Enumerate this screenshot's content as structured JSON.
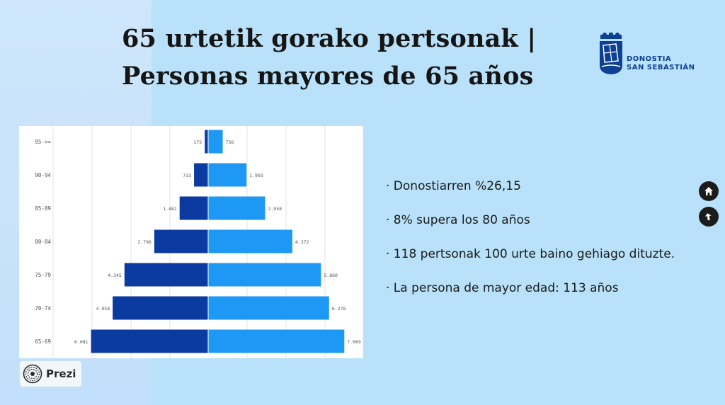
{
  "title": {
    "line1": "65 urtetik gorako pertsonak |",
    "line2": "Personas mayores de 65 años"
  },
  "logo": {
    "line1": "DONOSTIA",
    "line2": "SAN SEBASTIÁN",
    "icon": "city-shield-icon"
  },
  "bullets": [
    "· Donostiarren %26,15",
    "· 8% supera los 80 años",
    "· 118 pertsonak 100 urte baino gehiago dituzte.",
    "· La persona de mayor edad: 113 años"
  ],
  "nav": {
    "home_icon": "home-icon",
    "back_icon": "back-arrow-icon"
  },
  "prezi": {
    "label": "Prezi",
    "icon": "prezi-logo-icon"
  },
  "colors": {
    "background": "#b9e2fa",
    "left_bar": "#0b3aa0",
    "right_bar": "#1e98f5",
    "logo_blue": "#0d3f92"
  },
  "chart_data": {
    "type": "bar",
    "orientation": "horizontal-population-pyramid",
    "categories": [
      "95->=",
      "90-94",
      "85-89",
      "80-84",
      "75-79",
      "70-74",
      "65-69"
    ],
    "series": [
      {
        "values": [
          175,
          733,
          1482,
          2796,
          4345,
          4958,
          6081
        ],
        "labels": [
          "175",
          "733",
          "1.482",
          "2.796",
          "4.345",
          "4.958",
          "6.081"
        ],
        "color": "#0b3aa0",
        "side": "left"
      },
      {
        "values": [
          756,
          1993,
          2958,
          4372,
          5860,
          6278,
          7069
        ],
        "labels": [
          "756",
          "1.993",
          "2.958",
          "4.372",
          "5.860",
          "6.278",
          "7.069"
        ],
        "color": "#1e98f5",
        "side": "right"
      }
    ],
    "xlim": [
      -8000,
      8000
    ],
    "grid": true,
    "legend": "none"
  }
}
